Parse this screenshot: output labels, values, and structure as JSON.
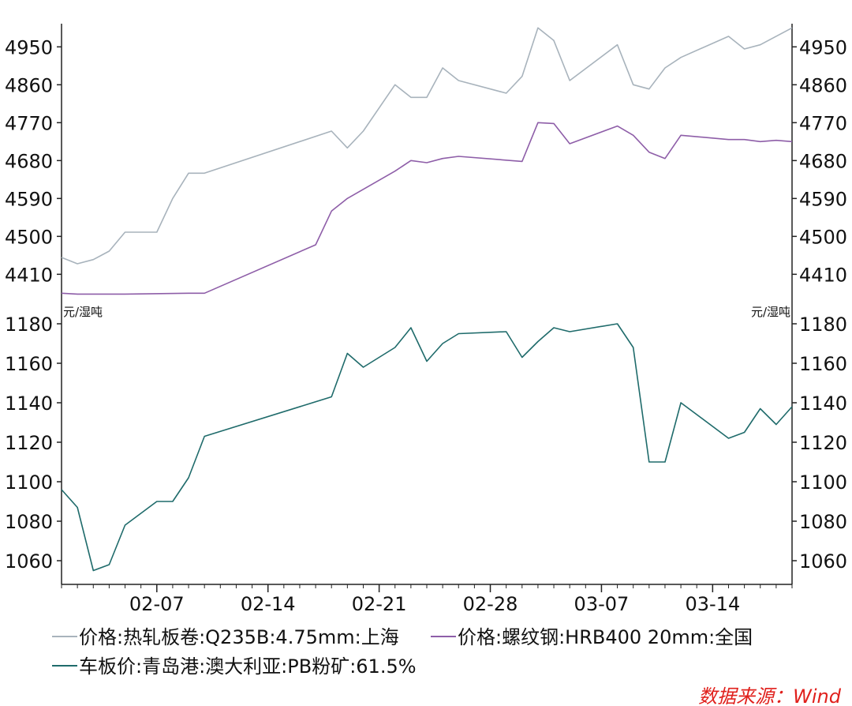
{
  "chart_data": [
    {
      "type": "line",
      "panel": "top",
      "xlabel": "",
      "ylabel": "",
      "ylim": [
        4375,
        5005
      ],
      "y_ticks": [
        4410,
        4500,
        4590,
        4680,
        4770,
        4860,
        4950
      ],
      "y_tick_labels": [
        "4410",
        "4500",
        "4590",
        "4680",
        "4770",
        "4860",
        "4950"
      ],
      "x_ticks": [
        "02-07",
        "02-14",
        "02-21",
        "02-28",
        "03-07",
        "03-14"
      ],
      "grid": false,
      "series": [
        {
          "name": "价格:热轧板卷:Q235B:4.75mm:上海",
          "color": "#a8b3bc",
          "points": [
            [
              "02-01",
              4450
            ],
            [
              "02-02",
              4435
            ],
            [
              "02-03",
              4445
            ],
            [
              "02-04",
              4465
            ],
            [
              "02-05",
              4510
            ],
            [
              "02-07",
              4510
            ],
            [
              "02-08",
              4590
            ],
            [
              "02-09",
              4650
            ],
            [
              "02-10",
              4650
            ],
            [
              "02-18",
              4750
            ],
            [
              "02-19",
              4710
            ],
            [
              "02-20",
              4750
            ],
            [
              "02-22",
              4860
            ],
            [
              "02-23",
              4830
            ],
            [
              "02-24",
              4830
            ],
            [
              "02-25",
              4900
            ],
            [
              "02-26",
              4870
            ],
            [
              "03-01",
              4840
            ],
            [
              "03-02",
              4880
            ],
            [
              "03-03",
              4995
            ],
            [
              "03-04",
              4965
            ],
            [
              "03-05",
              4870
            ],
            [
              "03-08",
              4955
            ],
            [
              "03-09",
              4860
            ],
            [
              "03-10",
              4850
            ],
            [
              "03-11",
              4900
            ],
            [
              "03-12",
              4925
            ],
            [
              "03-15",
              4975
            ],
            [
              "03-16",
              4945
            ],
            [
              "03-17",
              4955
            ],
            [
              "03-19",
              4995
            ]
          ]
        },
        {
          "name": "价格:螺纹钢:HRB400 20mm:全国",
          "color": "#8e5ea8",
          "points": [
            [
              "02-01",
              4365
            ],
            [
              "02-02",
              4363
            ],
            [
              "02-05",
              4363
            ],
            [
              "02-09",
              4365
            ],
            [
              "02-10",
              4365
            ],
            [
              "02-17",
              4480
            ],
            [
              "02-18",
              4560
            ],
            [
              "02-19",
              4590
            ],
            [
              "02-22",
              4655
            ],
            [
              "02-23",
              4680
            ],
            [
              "02-24",
              4675
            ],
            [
              "02-25",
              4685
            ],
            [
              "02-26",
              4690
            ],
            [
              "03-02",
              4678
            ],
            [
              "03-03",
              4770
            ],
            [
              "03-04",
              4768
            ],
            [
              "03-05",
              4720
            ],
            [
              "03-08",
              4762
            ],
            [
              "03-09",
              4740
            ],
            [
              "03-10",
              4700
            ],
            [
              "03-11",
              4685
            ],
            [
              "03-12",
              4740
            ],
            [
              "03-15",
              4730
            ],
            [
              "03-16",
              4730
            ],
            [
              "03-17",
              4725
            ],
            [
              "03-18",
              4728
            ],
            [
              "03-19",
              4725
            ]
          ]
        }
      ]
    },
    {
      "type": "line",
      "panel": "bottom",
      "xlabel": "",
      "ylabel": "元/湿吨",
      "ylabel_right": "元/湿吨",
      "ylim": [
        1048,
        1186
      ],
      "y_ticks": [
        1060,
        1080,
        1100,
        1120,
        1140,
        1160,
        1180
      ],
      "y_tick_labels": [
        "1060",
        "1080",
        "1100",
        "1120",
        "1140",
        "1160",
        "1180"
      ],
      "x_ticks": [
        "02-07",
        "02-14",
        "02-21",
        "02-28",
        "03-07",
        "03-14"
      ],
      "x_tick_labels": [
        "02-07",
        "02-14",
        "02-21",
        "02-28",
        "03-07",
        "03-14"
      ],
      "grid": false,
      "series": [
        {
          "name": "车板价:青岛港:澳大利亚:PB粉矿:61.5%",
          "color": "#1f6b6b",
          "points": [
            [
              "02-01",
              1096
            ],
            [
              "02-02",
              1087
            ],
            [
              "02-03",
              1055
            ],
            [
              "02-04",
              1058
            ],
            [
              "02-05",
              1078
            ],
            [
              "02-07",
              1090
            ],
            [
              "02-08",
              1090
            ],
            [
              "02-09",
              1102
            ],
            [
              "02-10",
              1123
            ],
            [
              "02-18",
              1143
            ],
            [
              "02-19",
              1165
            ],
            [
              "02-20",
              1158
            ],
            [
              "02-22",
              1168
            ],
            [
              "02-23",
              1178
            ],
            [
              "02-24",
              1161
            ],
            [
              "02-25",
              1170
            ],
            [
              "02-26",
              1175
            ],
            [
              "03-01",
              1176
            ],
            [
              "03-02",
              1163
            ],
            [
              "03-03",
              1171
            ],
            [
              "03-04",
              1178
            ],
            [
              "03-05",
              1176
            ],
            [
              "03-08",
              1180
            ],
            [
              "03-09",
              1168
            ],
            [
              "03-10",
              1110
            ],
            [
              "03-11",
              1110
            ],
            [
              "03-12",
              1140
            ],
            [
              "03-15",
              1122
            ],
            [
              "03-16",
              1125
            ],
            [
              "03-17",
              1137
            ],
            [
              "03-18",
              1129
            ],
            [
              "03-19",
              1138
            ]
          ]
        }
      ]
    }
  ],
  "legend": {
    "items": [
      {
        "label": "价格:热轧板卷:Q235B:4.75mm:上海",
        "color": "#a8b3bc"
      },
      {
        "label": "价格:螺纹钢:HRB400 20mm:全国",
        "color": "#8e5ea8"
      },
      {
        "label": "车板价:青岛港:澳大利亚:PB粉矿:61.5%",
        "color": "#1f6b6b"
      }
    ]
  },
  "source": "数据来源：Wind"
}
